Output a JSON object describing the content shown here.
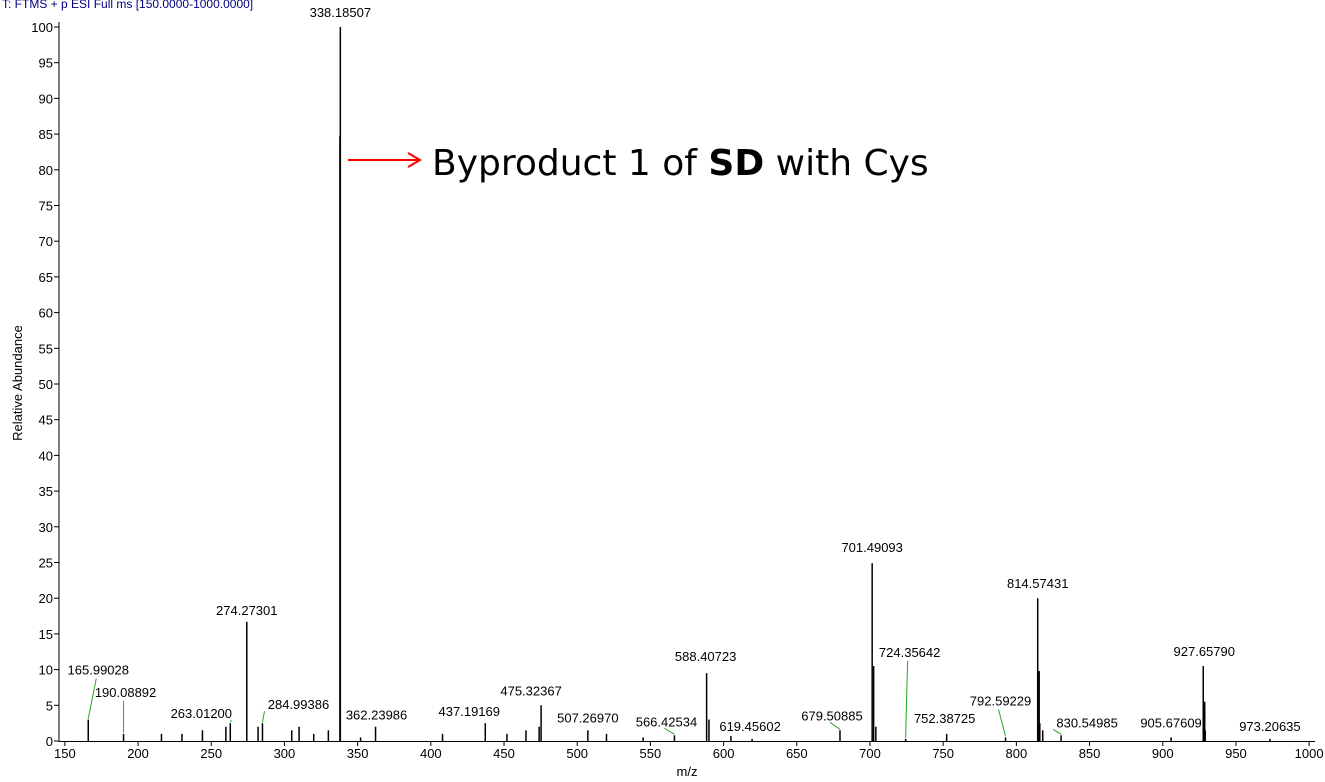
{
  "chart_data": {
    "type": "stem",
    "header": "T: FTMS + p ESI Full ms [150.0000-1000.0000]",
    "x_label": "m/z",
    "y_label": "Relative Abundance",
    "annotation": [
      "Byproduct 1 of ",
      "SD",
      " with Cys"
    ],
    "color": "#000000",
    "leader_color": "#22aa22",
    "annotation_color": "#ff0000",
    "x": [
      165.99028,
      190.08892,
      263.012,
      274.27301,
      284.99386,
      338.18507,
      362.23986,
      437.19169,
      475.32367,
      507.2697,
      566.42534,
      588.40723,
      619.45602,
      679.50885,
      701.49093,
      724.35642,
      752.38725,
      792.59229,
      814.57431,
      830.54985,
      905.67609,
      927.6579,
      973.20635
    ],
    "x_labels": [
      "165.99028",
      "190.08892",
      "263.01200",
      "274.27301",
      "284.99386",
      "338.18507",
      "362.23986",
      "437.19169",
      "475.32367",
      "507.26970",
      "566.42534",
      "588.40723",
      "619.45602",
      "679.50885",
      "701.49093",
      "724.35642",
      "752.38725",
      "792.59229",
      "814.57431",
      "830.54985",
      "905.67609",
      "927.65790",
      "973.20635"
    ],
    "values": [
      3.0,
      1.0,
      2.5,
      16.7,
      2.5,
      100,
      2,
      2.5,
      5,
      1.5,
      0.8,
      9.5,
      0.3,
      1.5,
      24.9,
      0.3,
      1.0,
      0.5,
      20,
      0.8,
      0.5,
      10.5,
      0.3
    ],
    "minor_x": [
      216,
      230,
      244,
      260,
      282,
      305,
      310,
      320,
      330,
      337.9,
      352,
      408,
      452,
      465,
      474,
      520,
      545,
      590,
      605,
      702.49,
      704,
      815.58,
      816,
      818,
      928.66,
      929
    ],
    "minor_values": [
      1,
      1,
      1.5,
      2,
      2,
      1.5,
      2,
      1,
      1.5,
      84.7,
      0.5,
      1,
      1,
      1.5,
      2,
      1,
      0.5,
      3,
      0.7,
      10.5,
      2,
      9.8,
      2.5,
      1.5,
      5.5,
      1.5
    ],
    "xlim": [
      146,
      1004
    ],
    "ylim": [
      0,
      100
    ],
    "xticks": [
      150,
      200,
      250,
      300,
      350,
      400,
      450,
      500,
      550,
      600,
      650,
      700,
      750,
      800,
      850,
      900,
      950,
      1000
    ],
    "yticks": [
      0,
      5,
      10,
      15,
      20,
      25,
      30,
      35,
      40,
      45,
      50,
      55,
      60,
      65,
      70,
      75,
      80,
      85,
      90,
      95,
      100
    ]
  }
}
